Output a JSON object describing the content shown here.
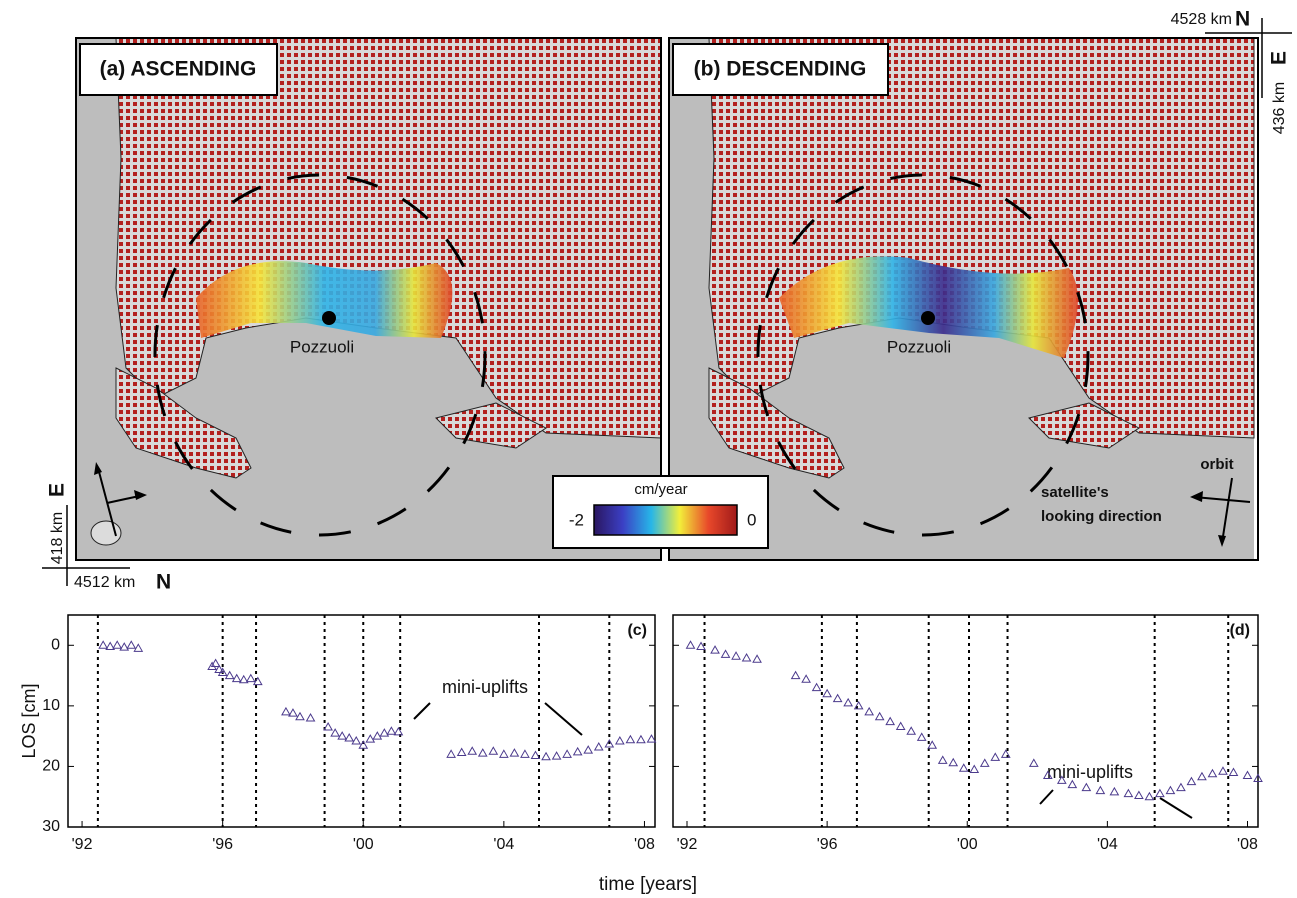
{
  "maps": [
    {
      "title": "(a) ASCENDING",
      "place": "Pozzuoli"
    },
    {
      "title": "(b) DESCENDING",
      "place": "Pozzuoli",
      "orbit": "orbit",
      "look": [
        "satellite's",
        "looking direction"
      ]
    }
  ],
  "colorbar": {
    "label": "cm/year",
    "lim": [
      -2,
      0
    ],
    "ticks": [
      -2,
      0
    ]
  },
  "coords": {
    "top_right": {
      "north": "4528 km",
      "north_letter": "N",
      "east": "436 km",
      "east_letter": "E"
    },
    "bottom_left": {
      "north": "4512 km",
      "north_letter": "N",
      "east": "418 km",
      "east_letter": "E"
    }
  },
  "figure": {
    "xlabel": "time [years]"
  },
  "chart_data": [
    {
      "type": "scatter",
      "panel": "(c)",
      "ylabel": "LOS [cm]",
      "annotation": "mini-uplifts",
      "color": "#4b3a8c",
      "ytick_labels": true,
      "xlim": [
        1991.6,
        2008.3
      ],
      "ylim": [
        30,
        -5
      ],
      "xticks": [
        {
          "value": 1992,
          "label": "'92"
        },
        {
          "value": 1996,
          "label": "'96"
        },
        {
          "value": 2000,
          "label": "'00"
        },
        {
          "value": 2004,
          "label": "'04"
        },
        {
          "value": 2008,
          "label": "'08"
        }
      ],
      "yticks": [
        0,
        10,
        20,
        30
      ],
      "event_lines": [
        1992.45,
        1996.0,
        1996.95,
        1998.9,
        2000.0,
        2001.05,
        2005.0,
        2007.0
      ],
      "x": [
        1992.6,
        1992.8,
        1993.0,
        1993.2,
        1993.4,
        1993.6,
        1995.7,
        1995.8,
        1995.9,
        1996.0,
        1996.2,
        1996.4,
        1996.6,
        1996.8,
        1997.0,
        1997.8,
        1998.0,
        1998.2,
        1998.5,
        1999.0,
        1999.2,
        1999.4,
        1999.6,
        1999.8,
        2000.0,
        2000.2,
        2000.4,
        2000.6,
        2000.8,
        2001.0,
        2002.5,
        2002.8,
        2003.1,
        2003.4,
        2003.7,
        2004.0,
        2004.3,
        2004.6,
        2004.9,
        2005.2,
        2005.5,
        2005.8,
        2006.1,
        2006.4,
        2006.7,
        2007.0,
        2007.3,
        2007.6,
        2007.9,
        2008.2
      ],
      "values": [
        0,
        0.2,
        0,
        0.3,
        0,
        0.5,
        3.5,
        3,
        4,
        4.5,
        5,
        5.5,
        5.7,
        5.5,
        6,
        11,
        11.2,
        11.8,
        12,
        13.5,
        14.5,
        15,
        15.3,
        15.8,
        16.5,
        15.5,
        15,
        14.5,
        14.2,
        14.3,
        18,
        17.7,
        17.5,
        17.8,
        17.5,
        18,
        17.8,
        18,
        18.2,
        18.4,
        18.3,
        18,
        17.6,
        17.3,
        16.8,
        16.3,
        15.8,
        15.6,
        15.6,
        15.5
      ]
    },
    {
      "type": "scatter",
      "panel": "(d)",
      "annotation": "mini-uplifts",
      "color": "#4b3a8c",
      "ytick_labels": false,
      "xlim": [
        1991.6,
        2008.3
      ],
      "ylim": [
        30,
        -5
      ],
      "xticks": [
        {
          "value": 1992,
          "label": "'92"
        },
        {
          "value": 1996,
          "label": "'96"
        },
        {
          "value": 2000,
          "label": "'00"
        },
        {
          "value": 2004,
          "label": "'04"
        },
        {
          "value": 2008,
          "label": "'08"
        }
      ],
      "yticks": [
        0,
        10,
        20,
        30
      ],
      "event_lines": [
        1992.5,
        1995.85,
        1996.85,
        1998.9,
        2000.05,
        2001.15,
        2005.35,
        2007.45
      ],
      "x": [
        1992.1,
        1992.4,
        1992.8,
        1993.1,
        1993.4,
        1993.7,
        1994.0,
        1995.1,
        1995.4,
        1995.7,
        1996.0,
        1996.3,
        1996.6,
        1996.9,
        1997.2,
        1997.5,
        1997.8,
        1998.1,
        1998.4,
        1998.7,
        1999.0,
        1999.3,
        1999.6,
        1999.9,
        2000.2,
        2000.5,
        2000.8,
        2001.1,
        2001.9,
        2002.3,
        2002.7,
        2003.0,
        2003.4,
        2003.8,
        2004.2,
        2004.6,
        2004.9,
        2005.2,
        2005.5,
        2005.8,
        2006.1,
        2006.4,
        2006.7,
        2007.0,
        2007.3,
        2007.6,
        2008.0,
        2008.3
      ],
      "values": [
        0,
        0.2,
        0.8,
        1.5,
        1.8,
        2.1,
        2.3,
        5,
        5.6,
        7,
        8,
        8.8,
        9.5,
        10,
        11,
        11.8,
        12.6,
        13.4,
        14.2,
        15.2,
        16.5,
        19,
        19.4,
        20.3,
        20.5,
        19.5,
        18.5,
        18,
        19.5,
        21.5,
        22.3,
        23,
        23.5,
        24,
        24.2,
        24.5,
        24.8,
        25,
        24.5,
        24,
        23.5,
        22.5,
        21.7,
        21.2,
        20.8,
        21,
        21.5,
        22
      ]
    }
  ]
}
